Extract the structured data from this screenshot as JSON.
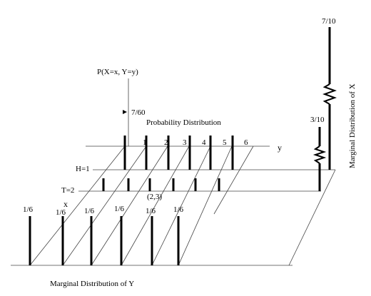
{
  "axis_label": "P(X=x, Y=y)",
  "peak_label": "7/60",
  "title": "Probability Distribution",
  "y_axis": {
    "label": "y",
    "ticks": [
      "1",
      "2",
      "3",
      "4",
      "5",
      "6"
    ]
  },
  "rows": {
    "labels": [
      "H=1",
      "T=2"
    ],
    "axis_label": "x",
    "point_label": "(2,3)"
  },
  "marginal_y": {
    "labels": [
      "1/6",
      "1/6",
      "1/6",
      "1/6",
      "1/6",
      "1/6"
    ],
    "title": "Marginal Distribution of Y"
  },
  "marginal_x": {
    "labels": [
      "7/10",
      "3/10"
    ],
    "title": "Marginal Distribution of X"
  }
}
